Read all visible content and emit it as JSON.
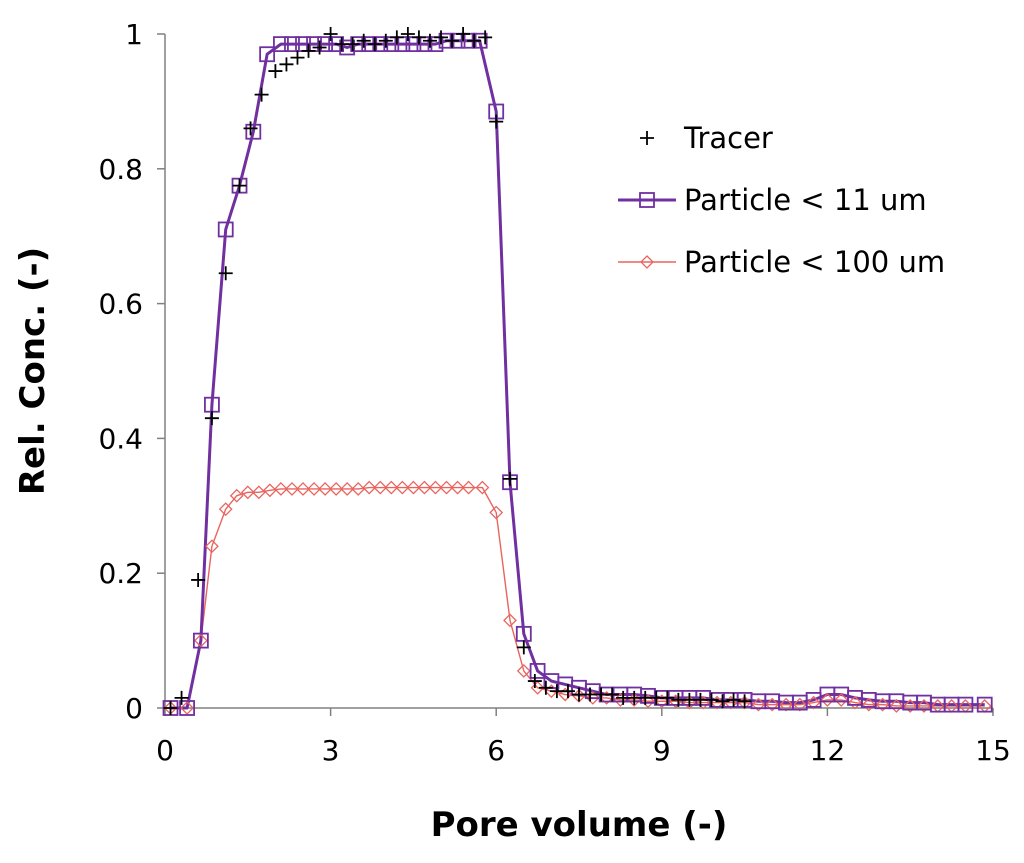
{
  "chart_data": {
    "type": "scatter",
    "title": "",
    "xlabel": "Pore volume (-)",
    "ylabel": "Rel. Conc. (-)",
    "xlim": [
      0,
      15
    ],
    "ylim": [
      0,
      1
    ],
    "xticks": [
      0,
      3,
      6,
      9,
      12,
      15
    ],
    "yticks": [
      0,
      0.2,
      0.4,
      0.6,
      0.8,
      1
    ],
    "xtick_labels": [
      "0",
      "3",
      "6",
      "9",
      "12",
      "15"
    ],
    "ytick_labels": [
      "0",
      "0.2",
      "0.4",
      "0.6",
      "0.8",
      "1"
    ],
    "grid": false,
    "legend_position": "top-right",
    "series": [
      {
        "name": "Tracer",
        "style": "markers",
        "marker": "plus",
        "color": "#000000",
        "x": [
          0.1,
          0.3,
          0.6,
          0.85,
          1.1,
          1.35,
          1.55,
          1.75,
          2.0,
          2.2,
          2.4,
          2.6,
          2.8,
          3.0,
          3.2,
          3.4,
          3.6,
          3.8,
          4.0,
          4.2,
          4.4,
          4.6,
          4.8,
          5.0,
          5.2,
          5.4,
          5.6,
          5.8,
          6.0,
          6.25,
          6.5,
          6.7,
          6.9,
          7.1,
          7.3,
          7.5,
          7.7,
          7.9,
          8.1,
          8.3,
          8.5,
          8.7,
          8.9,
          9.1,
          9.3,
          9.5,
          9.7,
          9.9,
          10.1,
          10.3,
          10.5
        ],
        "y": [
          0.0,
          0.015,
          0.19,
          0.43,
          0.645,
          0.775,
          0.86,
          0.91,
          0.945,
          0.955,
          0.965,
          0.975,
          0.98,
          1.0,
          0.985,
          0.985,
          0.99,
          0.985,
          0.99,
          0.995,
          1.0,
          0.995,
          0.99,
          0.995,
          0.99,
          1.0,
          0.99,
          0.995,
          0.87,
          0.34,
          0.09,
          0.04,
          0.03,
          0.025,
          0.025,
          0.02,
          0.02,
          0.02,
          0.02,
          0.015,
          0.015,
          0.015,
          0.015,
          0.015,
          0.012,
          0.012,
          0.012,
          0.012,
          0.01,
          0.012,
          0.01
        ]
      },
      {
        "name": "Particle < 11 um",
        "style": "line-markers",
        "marker": "square",
        "color": "#7030a0",
        "x": [
          0.1,
          0.4,
          0.65,
          0.85,
          1.1,
          1.35,
          1.6,
          1.85,
          2.1,
          2.3,
          2.5,
          2.7,
          2.9,
          3.1,
          3.3,
          3.5,
          3.7,
          3.9,
          4.1,
          4.3,
          4.5,
          4.7,
          4.9,
          5.1,
          5.3,
          5.5,
          5.7,
          6.0,
          6.25,
          6.5,
          6.75,
          7.0,
          7.25,
          7.5,
          7.75,
          8.0,
          8.25,
          8.5,
          8.75,
          9.0,
          9.25,
          9.5,
          9.75,
          10.0,
          10.25,
          10.5,
          10.75,
          11.0,
          11.25,
          11.5,
          11.75,
          12.0,
          12.25,
          12.5,
          12.75,
          13.0,
          13.25,
          13.5,
          13.75,
          14.0,
          14.25,
          14.5,
          14.85
        ],
        "y": [
          0.0,
          0.0,
          0.1,
          0.45,
          0.71,
          0.775,
          0.855,
          0.97,
          0.985,
          0.985,
          0.985,
          0.985,
          0.985,
          0.985,
          0.98,
          0.985,
          0.985,
          0.985,
          0.985,
          0.985,
          0.985,
          0.985,
          0.985,
          0.99,
          0.99,
          0.99,
          0.99,
          0.885,
          0.335,
          0.11,
          0.055,
          0.04,
          0.035,
          0.03,
          0.025,
          0.02,
          0.02,
          0.02,
          0.018,
          0.015,
          0.015,
          0.015,
          0.015,
          0.012,
          0.012,
          0.012,
          0.01,
          0.01,
          0.008,
          0.008,
          0.012,
          0.02,
          0.02,
          0.015,
          0.012,
          0.01,
          0.01,
          0.008,
          0.008,
          0.005,
          0.005,
          0.005,
          0.005
        ]
      },
      {
        "name": "Particle < 100 um",
        "style": "line-markers",
        "marker": "diamond",
        "color": "#e8655f",
        "x": [
          0.1,
          0.4,
          0.65,
          0.85,
          1.1,
          1.3,
          1.5,
          1.7,
          1.9,
          2.1,
          2.3,
          2.5,
          2.7,
          2.9,
          3.1,
          3.3,
          3.5,
          3.7,
          3.9,
          4.1,
          4.3,
          4.5,
          4.7,
          4.9,
          5.1,
          5.3,
          5.5,
          5.75,
          6.0,
          6.25,
          6.5,
          6.75,
          7.0,
          7.25,
          7.5,
          7.75,
          8.0,
          8.25,
          8.5,
          8.75,
          9.0,
          9.25,
          9.5,
          9.75,
          10.0,
          10.25,
          10.5,
          10.75,
          11.0,
          11.25,
          11.5,
          11.75,
          12.0,
          12.25,
          12.5,
          12.75,
          13.0,
          13.25,
          13.5,
          13.75,
          14.0,
          14.25,
          14.5,
          14.85
        ],
        "y": [
          0.0,
          0.0,
          0.1,
          0.24,
          0.295,
          0.315,
          0.32,
          0.32,
          0.323,
          0.325,
          0.325,
          0.325,
          0.325,
          0.325,
          0.325,
          0.325,
          0.325,
          0.327,
          0.327,
          0.327,
          0.327,
          0.327,
          0.327,
          0.327,
          0.327,
          0.327,
          0.327,
          0.327,
          0.29,
          0.13,
          0.055,
          0.03,
          0.025,
          0.02,
          0.018,
          0.015,
          0.015,
          0.012,
          0.012,
          0.01,
          0.01,
          0.01,
          0.008,
          0.008,
          0.008,
          0.008,
          0.008,
          0.005,
          0.005,
          0.005,
          0.005,
          0.008,
          0.012,
          0.012,
          0.008,
          0.005,
          0.005,
          0.003,
          0.003,
          0.003,
          0.003,
          0.003,
          0.003,
          0.003
        ]
      }
    ]
  }
}
